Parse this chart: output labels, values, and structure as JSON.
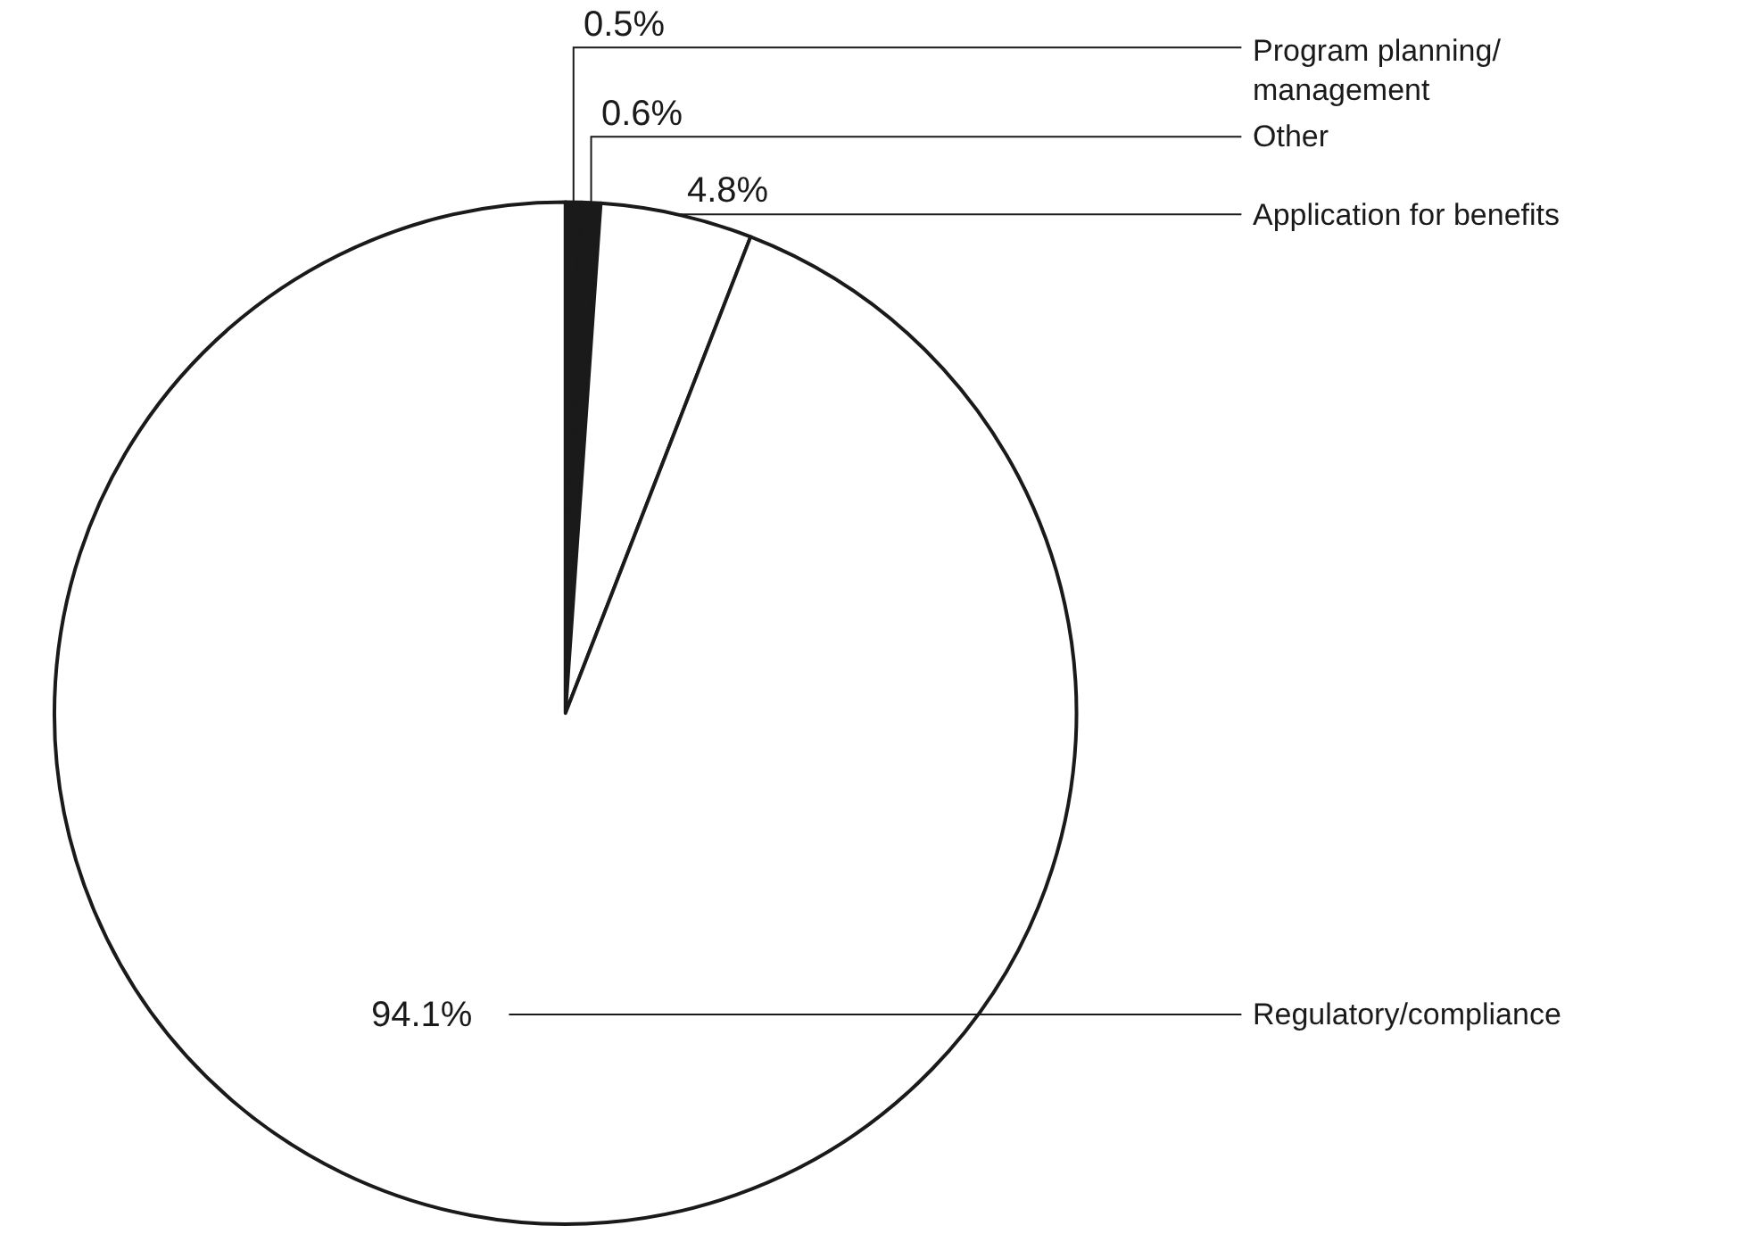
{
  "chart_data": {
    "type": "pie",
    "categories": [
      "Program planning/ management",
      "Other",
      "Application for benefits",
      "Regulatory/compliance"
    ],
    "values": [
      0.5,
      0.6,
      4.8,
      94.1
    ],
    "colors": [
      "#1a1a1a",
      "#1a1a1a",
      "#ffffff",
      "#ffffff"
    ],
    "value_labels": [
      "0.5%",
      "0.6%",
      "4.8%",
      "94.1%"
    ]
  }
}
